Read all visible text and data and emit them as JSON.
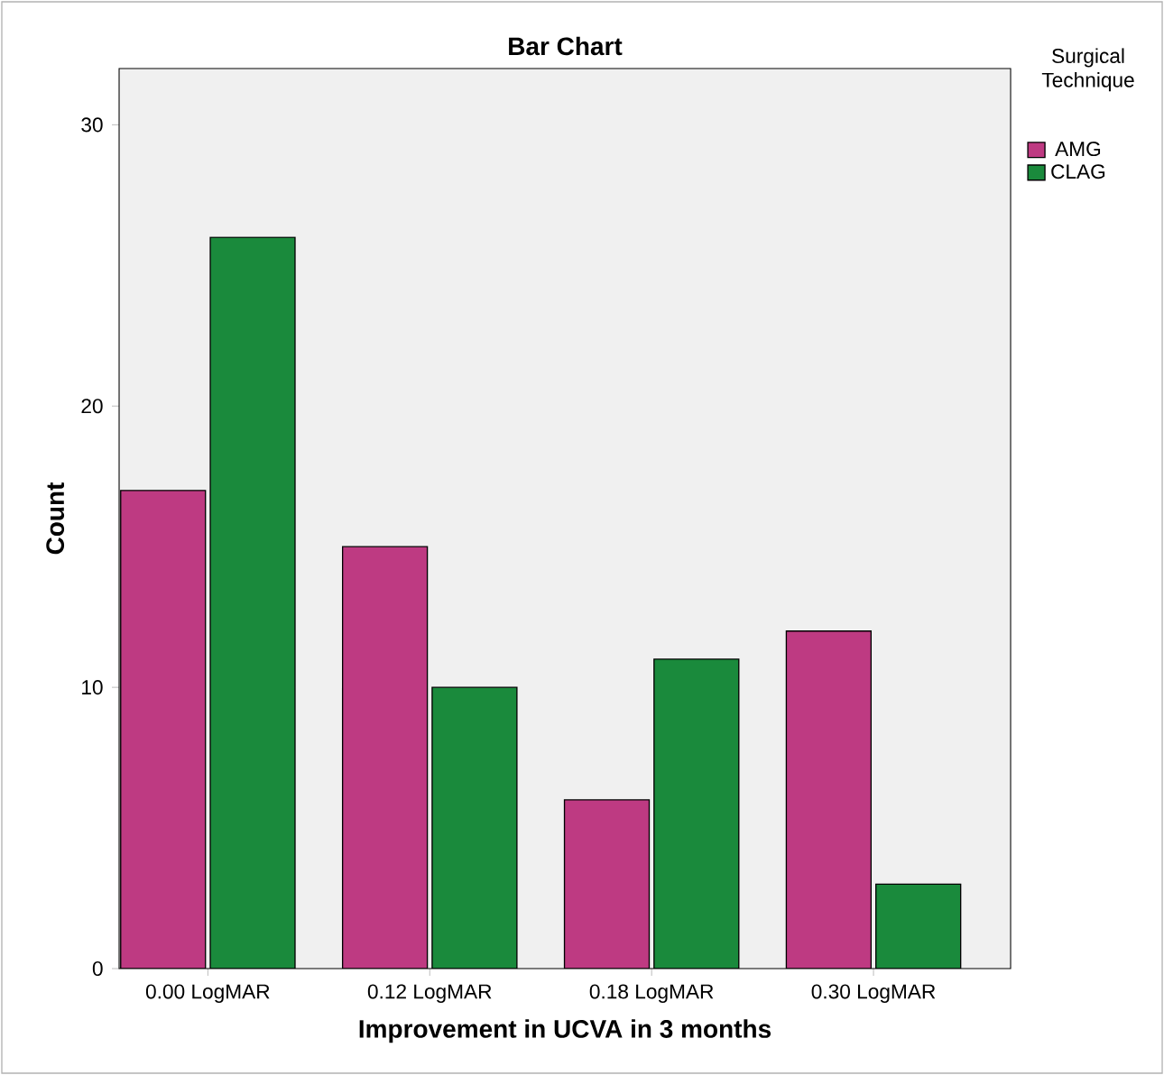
{
  "chart_data": {
    "type": "bar",
    "title": "Bar Chart",
    "xlabel": "Improvement in UCVA in 3 months",
    "ylabel": "Count",
    "legend_title": "Surgical Technique",
    "categories": [
      "0.00 LogMAR",
      "0.12 LogMAR",
      "0.18 LogMAR",
      "0.30 LogMAR"
    ],
    "series": [
      {
        "name": "AMG",
        "color": "#be3a82",
        "values": [
          17,
          15,
          6,
          12
        ]
      },
      {
        "name": "CLAG",
        "color": "#1a8a3c",
        "values": [
          26,
          10,
          11,
          3
        ]
      }
    ],
    "ylim": [
      0,
      32
    ],
    "yticks": [
      0,
      10,
      20,
      30
    ],
    "grid": false,
    "legend": "top right"
  }
}
